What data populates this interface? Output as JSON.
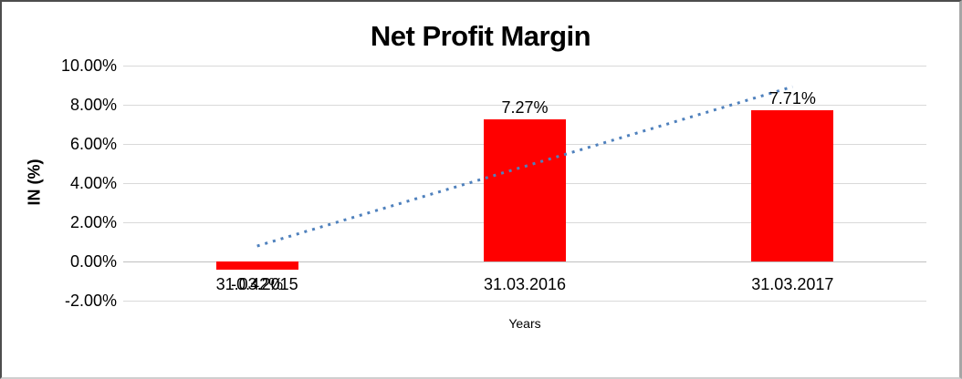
{
  "chart_data": {
    "type": "bar",
    "title": "Net Profit Margin",
    "xlabel": "Years",
    "ylabel": "IN (%)",
    "categories": [
      "31.03.2015",
      "31.03.2016",
      "31.03.2017"
    ],
    "values": [
      -0.42,
      7.27,
      7.71
    ],
    "data_labels": [
      "-0.42%",
      "7.27%",
      "7.71%"
    ],
    "ylim": [
      -2,
      10
    ],
    "yticks": [
      {
        "value": 10,
        "label": "10.00%"
      },
      {
        "value": 8,
        "label": "8.00%"
      },
      {
        "value": 6,
        "label": "6.00%"
      },
      {
        "value": 4,
        "label": "4.00%"
      },
      {
        "value": 2,
        "label": "2.00%"
      },
      {
        "value": 0,
        "label": "0.00%"
      },
      {
        "value": -2,
        "label": "-2.00%"
      }
    ],
    "grid": true,
    "legend": "none",
    "bar_color": "#ff0000",
    "gridline_color": "#d9d9d9",
    "axis_line_color": "#bfbfbf",
    "trendline": {
      "type": "linear",
      "style": "dotted",
      "color": "#4f81bd",
      "points": [
        {
          "category_index": 0,
          "value": 0.79
        },
        {
          "category_index": 2,
          "value": 8.92
        }
      ]
    }
  }
}
